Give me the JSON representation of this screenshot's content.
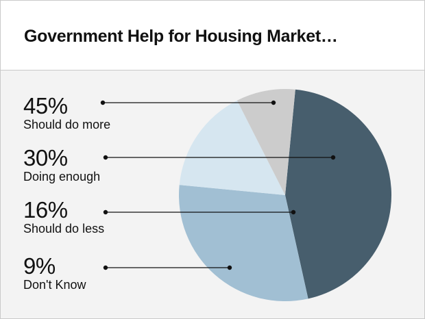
{
  "chart_data": {
    "type": "pie",
    "title": "Government Help for Housing Market…",
    "slices": [
      {
        "label": "Should do more",
        "percent_label": "45%",
        "value": 45,
        "color": "#475e6d"
      },
      {
        "label": "Doing enough",
        "percent_label": "30%",
        "value": 30,
        "color": "#a1bfd3"
      },
      {
        "label": "Should do less",
        "percent_label": "16%",
        "value": 16,
        "color": "#d6e6f0"
      },
      {
        "label": "Don't Know",
        "percent_label": "9%",
        "value": 9,
        "color": "#cccccc"
      }
    ],
    "legend": "left"
  }
}
